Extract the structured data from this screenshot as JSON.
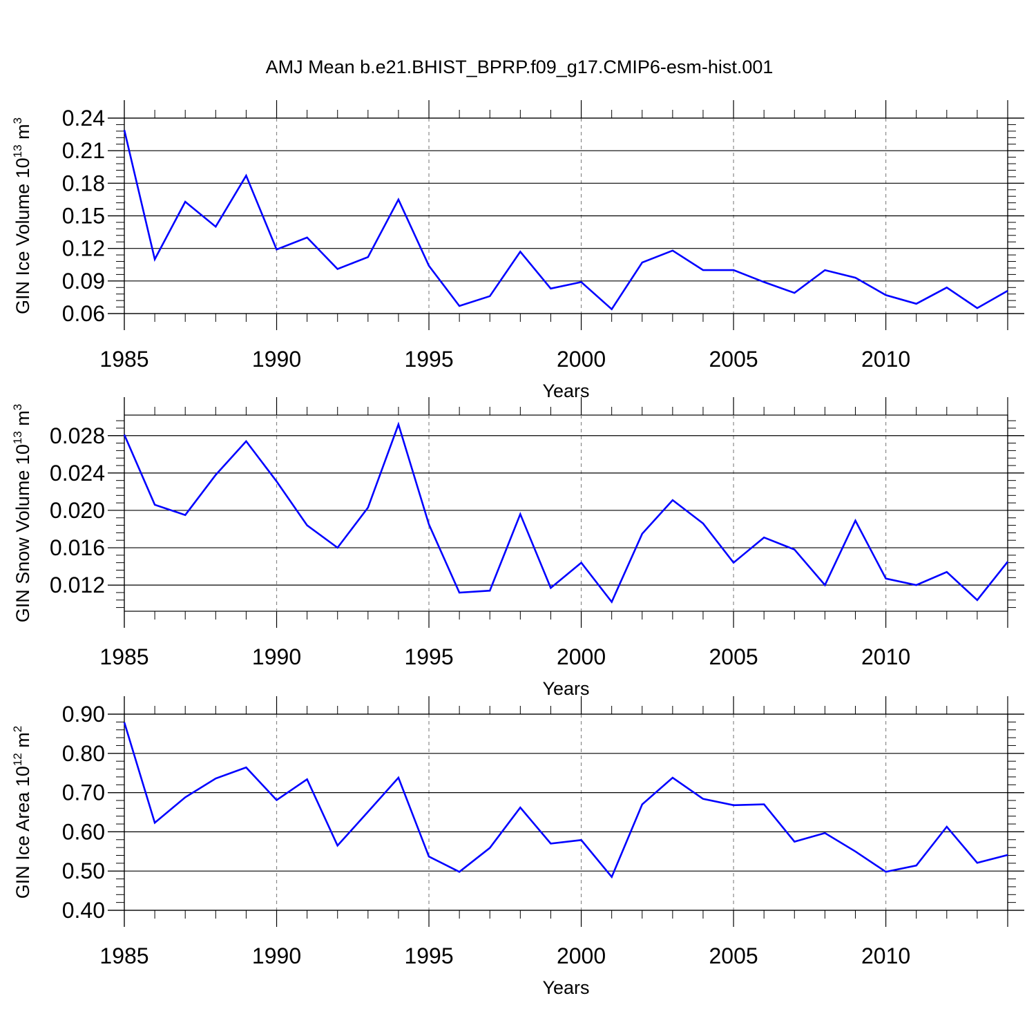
{
  "figure": {
    "title": "AMJ Mean b.e21.BHIST_BPRP.f09_g17.CMIP6-esm-hist.001",
    "line_color": "#0000ff",
    "grid_color": "#888888"
  },
  "chart_data": [
    {
      "type": "line",
      "title": "AMJ Mean b.e21.BHIST_BPRP.f09_g17.CMIP6-esm-hist.001",
      "xlabel": "Years",
      "ylabel": {
        "main": "GIN Ice Volume 10",
        "sup": "13",
        "unit": " m",
        "unit_sup": "3"
      },
      "xlim": [
        1985,
        2014
      ],
      "ylim": [
        0.06,
        0.24
      ],
      "xticks": [
        "1985",
        "1990",
        "1995",
        "2000",
        "2005",
        "2010"
      ],
      "yticks": [
        "0.06",
        "0.09",
        "0.12",
        "0.15",
        "0.18",
        "0.21",
        "0.24"
      ],
      "grid": "dashed vertical at major x ticks",
      "x": [
        1985,
        1986,
        1987,
        1988,
        1989,
        1990,
        1991,
        1992,
        1993,
        1994,
        1995,
        1996,
        1997,
        1998,
        1999,
        2000,
        2001,
        2002,
        2003,
        2004,
        2005,
        2006,
        2007,
        2008,
        2009,
        2010,
        2011,
        2012,
        2013,
        2014
      ],
      "values": [
        0.229,
        0.11,
        0.163,
        0.14,
        0.187,
        0.119,
        0.13,
        0.101,
        0.112,
        0.165,
        0.104,
        0.067,
        0.076,
        0.117,
        0.083,
        0.089,
        0.064,
        0.107,
        0.118,
        0.1,
        0.1,
        0.089,
        0.079,
        0.1,
        0.093,
        0.077,
        0.069,
        0.084,
        0.065,
        0.081
      ]
    },
    {
      "type": "line",
      "xlabel": "Years",
      "ylabel": {
        "main": "GIN Snow Volume 10",
        "sup": "13",
        "unit": " m",
        "unit_sup": "3"
      },
      "xlim": [
        1985,
        2014
      ],
      "ylim": [
        0.0092,
        0.0302
      ],
      "xticks": [
        "1985",
        "1990",
        "1995",
        "2000",
        "2005",
        "2010"
      ],
      "yticks": [
        "0.012",
        "0.016",
        "0.020",
        "0.024",
        "0.028"
      ],
      "grid": "dashed vertical at major x ticks",
      "x": [
        1985,
        1986,
        1987,
        1988,
        1989,
        1990,
        1991,
        1992,
        1993,
        1994,
        1995,
        1996,
        1997,
        1998,
        1999,
        2000,
        2001,
        2002,
        2003,
        2004,
        2005,
        2006,
        2007,
        2008,
        2009,
        2010,
        2011,
        2012,
        2013,
        2014
      ],
      "values": [
        0.0281,
        0.0206,
        0.0195,
        0.0238,
        0.0274,
        0.0231,
        0.0184,
        0.016,
        0.0203,
        0.0292,
        0.0185,
        0.0112,
        0.0114,
        0.0196,
        0.0117,
        0.0144,
        0.0102,
        0.0175,
        0.0211,
        0.0186,
        0.0144,
        0.0171,
        0.0158,
        0.012,
        0.0189,
        0.0127,
        0.012,
        0.0134,
        0.0104,
        0.0145
      ]
    },
    {
      "type": "line",
      "xlabel": "Years",
      "ylabel": {
        "main": "GIN Ice Area 10",
        "sup": "12",
        "unit": " m",
        "unit_sup": "2"
      },
      "xlim": [
        1985,
        2014
      ],
      "ylim": [
        0.4,
        0.9
      ],
      "xticks": [
        "1985",
        "1990",
        "1995",
        "2000",
        "2005",
        "2010"
      ],
      "yticks": [
        "0.40",
        "0.50",
        "0.60",
        "0.70",
        "0.80",
        "0.90"
      ],
      "grid": "dashed vertical at major x ticks",
      "x": [
        1985,
        1986,
        1987,
        1988,
        1989,
        1990,
        1991,
        1992,
        1993,
        1994,
        1995,
        1996,
        1997,
        1998,
        1999,
        2000,
        2001,
        2002,
        2003,
        2004,
        2005,
        2006,
        2007,
        2008,
        2009,
        2010,
        2011,
        2012,
        2013,
        2014
      ],
      "values": [
        0.879,
        0.623,
        0.688,
        0.736,
        0.764,
        0.681,
        0.734,
        0.565,
        0.651,
        0.738,
        0.537,
        0.498,
        0.559,
        0.662,
        0.57,
        0.579,
        0.485,
        0.67,
        0.738,
        0.684,
        0.668,
        0.67,
        0.575,
        0.597,
        0.55,
        0.498,
        0.514,
        0.613,
        0.521,
        0.541
      ]
    }
  ]
}
